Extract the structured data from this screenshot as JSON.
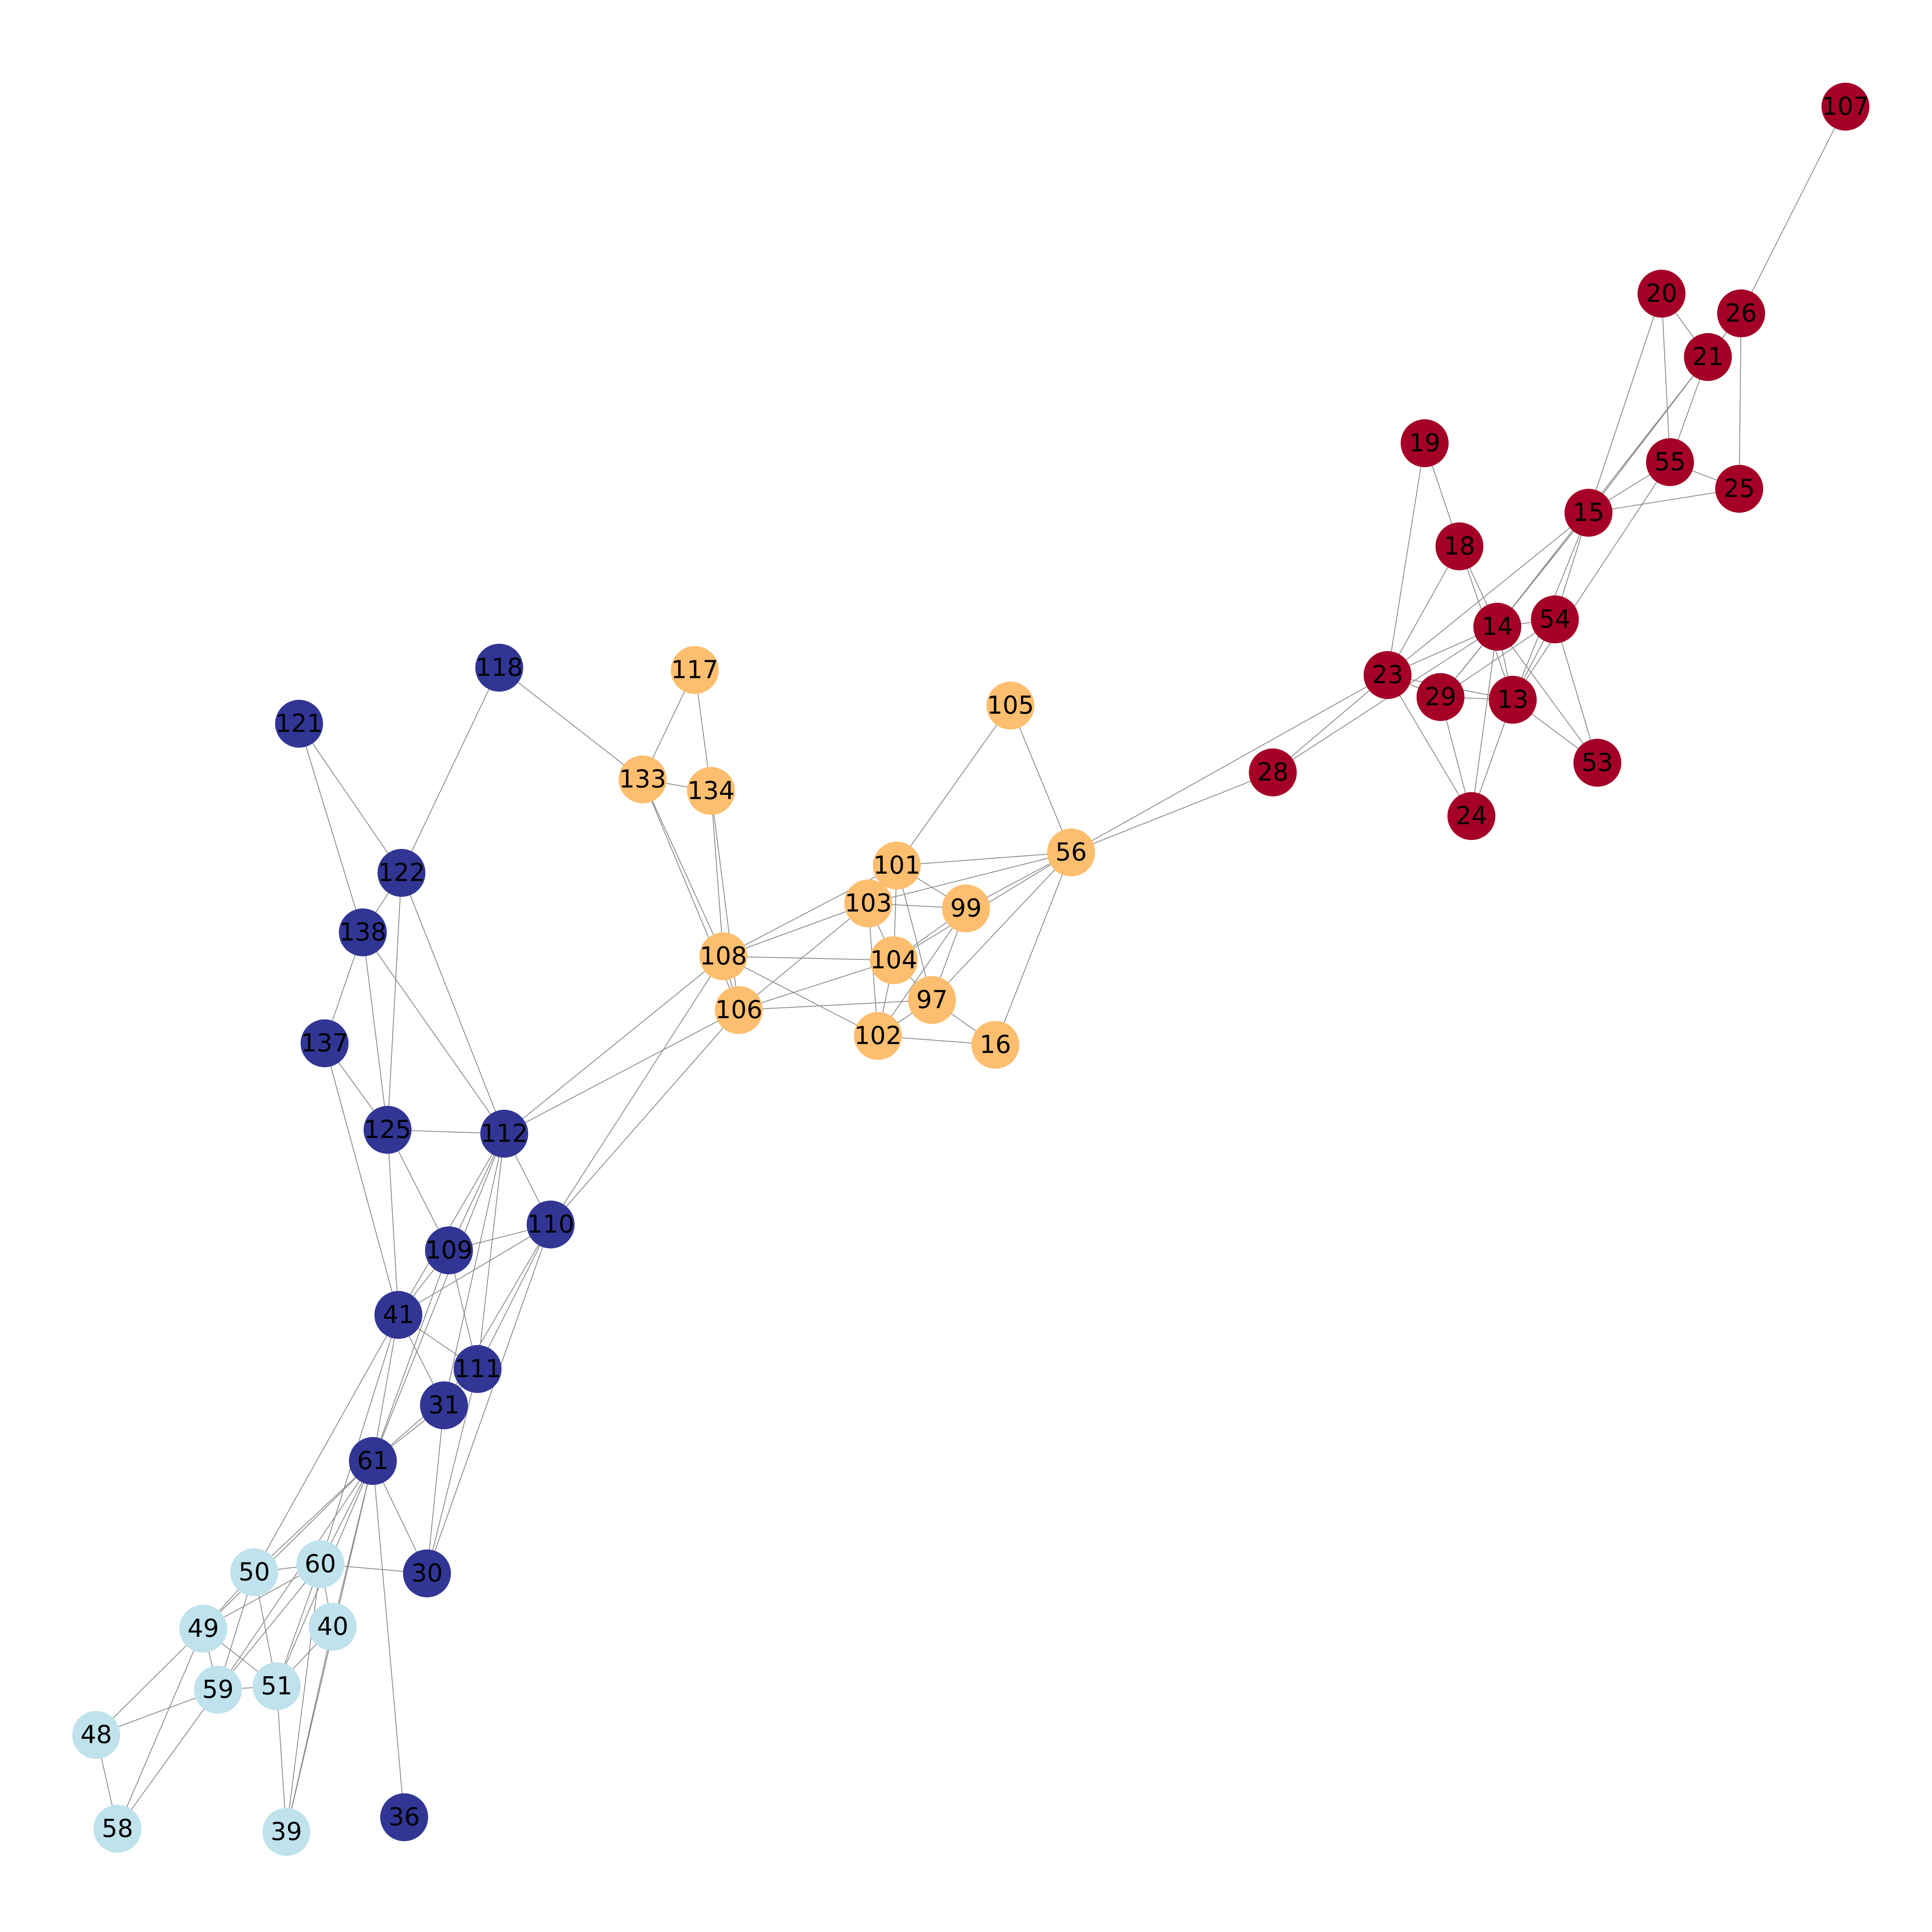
{
  "colors": {
    "red": "#a50026",
    "orange": "#fdbe6f",
    "darkblue": "#313695",
    "lightblue": "#bfe2ec",
    "edge": "#8c8c8c",
    "label": "#000000"
  },
  "nodes": [
    {
      "id": "107",
      "group": "red"
    },
    {
      "id": "20",
      "group": "red"
    },
    {
      "id": "26",
      "group": "red"
    },
    {
      "id": "21",
      "group": "red"
    },
    {
      "id": "55",
      "group": "red"
    },
    {
      "id": "25",
      "group": "red"
    },
    {
      "id": "19",
      "group": "red"
    },
    {
      "id": "15",
      "group": "red"
    },
    {
      "id": "18",
      "group": "red"
    },
    {
      "id": "14",
      "group": "red"
    },
    {
      "id": "54",
      "group": "red"
    },
    {
      "id": "23",
      "group": "red"
    },
    {
      "id": "29",
      "group": "red"
    },
    {
      "id": "13",
      "group": "red"
    },
    {
      "id": "53",
      "group": "red"
    },
    {
      "id": "28",
      "group": "red"
    },
    {
      "id": "24",
      "group": "red"
    },
    {
      "id": "105",
      "group": "orange"
    },
    {
      "id": "117",
      "group": "orange"
    },
    {
      "id": "133",
      "group": "orange"
    },
    {
      "id": "134",
      "group": "orange"
    },
    {
      "id": "56",
      "group": "orange"
    },
    {
      "id": "101",
      "group": "orange"
    },
    {
      "id": "103",
      "group": "orange"
    },
    {
      "id": "99",
      "group": "orange"
    },
    {
      "id": "108",
      "group": "orange"
    },
    {
      "id": "104",
      "group": "orange"
    },
    {
      "id": "97",
      "group": "orange"
    },
    {
      "id": "106",
      "group": "orange"
    },
    {
      "id": "102",
      "group": "orange"
    },
    {
      "id": "16",
      "group": "orange"
    },
    {
      "id": "118",
      "group": "darkblue"
    },
    {
      "id": "121",
      "group": "darkblue"
    },
    {
      "id": "122",
      "group": "darkblue"
    },
    {
      "id": "138",
      "group": "darkblue"
    },
    {
      "id": "137",
      "group": "darkblue"
    },
    {
      "id": "125",
      "group": "darkblue"
    },
    {
      "id": "112",
      "group": "darkblue"
    },
    {
      "id": "110",
      "group": "darkblue"
    },
    {
      "id": "109",
      "group": "darkblue"
    },
    {
      "id": "41",
      "group": "darkblue"
    },
    {
      "id": "111",
      "group": "darkblue"
    },
    {
      "id": "31",
      "group": "darkblue"
    },
    {
      "id": "61",
      "group": "darkblue"
    },
    {
      "id": "30",
      "group": "darkblue"
    },
    {
      "id": "36",
      "group": "darkblue"
    },
    {
      "id": "50",
      "group": "lightblue"
    },
    {
      "id": "60",
      "group": "lightblue"
    },
    {
      "id": "49",
      "group": "lightblue"
    },
    {
      "id": "40",
      "group": "lightblue"
    },
    {
      "id": "59",
      "group": "lightblue"
    },
    {
      "id": "51",
      "group": "lightblue"
    },
    {
      "id": "48",
      "group": "lightblue"
    },
    {
      "id": "58",
      "group": "lightblue"
    },
    {
      "id": "39",
      "group": "lightblue"
    }
  ],
  "edges": [
    [
      "107",
      "26"
    ],
    [
      "20",
      "21"
    ],
    [
      "20",
      "55"
    ],
    [
      "20",
      "15"
    ],
    [
      "26",
      "21"
    ],
    [
      "26",
      "25"
    ],
    [
      "26",
      "15"
    ],
    [
      "21",
      "15"
    ],
    [
      "21",
      "14"
    ],
    [
      "21",
      "55"
    ],
    [
      "55",
      "25"
    ],
    [
      "55",
      "15"
    ],
    [
      "55",
      "13"
    ],
    [
      "25",
      "15"
    ],
    [
      "19",
      "18"
    ],
    [
      "19",
      "23"
    ],
    [
      "15",
      "54"
    ],
    [
      "15",
      "23"
    ],
    [
      "15",
      "29"
    ],
    [
      "15",
      "13"
    ],
    [
      "15",
      "14"
    ],
    [
      "18",
      "14"
    ],
    [
      "18",
      "13"
    ],
    [
      "18",
      "23"
    ],
    [
      "14",
      "23"
    ],
    [
      "14",
      "29"
    ],
    [
      "14",
      "13"
    ],
    [
      "14",
      "24"
    ],
    [
      "14",
      "53"
    ],
    [
      "14",
      "54"
    ],
    [
      "14",
      "28"
    ],
    [
      "54",
      "53"
    ],
    [
      "54",
      "29"
    ],
    [
      "54",
      "13"
    ],
    [
      "23",
      "29"
    ],
    [
      "23",
      "13"
    ],
    [
      "23",
      "24"
    ],
    [
      "23",
      "28"
    ],
    [
      "23",
      "56"
    ],
    [
      "29",
      "13"
    ],
    [
      "29",
      "24"
    ],
    [
      "13",
      "53"
    ],
    [
      "13",
      "24"
    ],
    [
      "28",
      "56"
    ],
    [
      "105",
      "56"
    ],
    [
      "105",
      "101"
    ],
    [
      "117",
      "133"
    ],
    [
      "117",
      "134"
    ],
    [
      "133",
      "134"
    ],
    [
      "133",
      "108"
    ],
    [
      "133",
      "106"
    ],
    [
      "133",
      "118"
    ],
    [
      "134",
      "108"
    ],
    [
      "134",
      "106"
    ],
    [
      "56",
      "101"
    ],
    [
      "56",
      "103"
    ],
    [
      "56",
      "99"
    ],
    [
      "56",
      "104"
    ],
    [
      "56",
      "97"
    ],
    [
      "56",
      "16"
    ],
    [
      "101",
      "103"
    ],
    [
      "101",
      "99"
    ],
    [
      "101",
      "108"
    ],
    [
      "101",
      "104"
    ],
    [
      "101",
      "97"
    ],
    [
      "103",
      "99"
    ],
    [
      "103",
      "104"
    ],
    [
      "103",
      "102"
    ],
    [
      "103",
      "106"
    ],
    [
      "103",
      "108"
    ],
    [
      "99",
      "104"
    ],
    [
      "99",
      "97"
    ],
    [
      "99",
      "102"
    ],
    [
      "108",
      "104"
    ],
    [
      "108",
      "102"
    ],
    [
      "108",
      "106"
    ],
    [
      "108",
      "112"
    ],
    [
      "108",
      "110"
    ],
    [
      "104",
      "106"
    ],
    [
      "104",
      "102"
    ],
    [
      "104",
      "97"
    ],
    [
      "97",
      "106"
    ],
    [
      "97",
      "102"
    ],
    [
      "97",
      "16"
    ],
    [
      "106",
      "112"
    ],
    [
      "106",
      "110"
    ],
    [
      "102",
      "16"
    ],
    [
      "118",
      "122"
    ],
    [
      "121",
      "122"
    ],
    [
      "121",
      "138"
    ],
    [
      "122",
      "138"
    ],
    [
      "122",
      "125"
    ],
    [
      "122",
      "112"
    ],
    [
      "138",
      "137"
    ],
    [
      "138",
      "125"
    ],
    [
      "138",
      "112"
    ],
    [
      "137",
      "125"
    ],
    [
      "137",
      "41"
    ],
    [
      "125",
      "112"
    ],
    [
      "125",
      "109"
    ],
    [
      "125",
      "41"
    ],
    [
      "112",
      "110"
    ],
    [
      "112",
      "109"
    ],
    [
      "112",
      "41"
    ],
    [
      "112",
      "111"
    ],
    [
      "112",
      "31"
    ],
    [
      "112",
      "61"
    ],
    [
      "110",
      "109"
    ],
    [
      "110",
      "41"
    ],
    [
      "110",
      "111"
    ],
    [
      "110",
      "31"
    ],
    [
      "110",
      "30"
    ],
    [
      "109",
      "41"
    ],
    [
      "109",
      "111"
    ],
    [
      "109",
      "61"
    ],
    [
      "41",
      "111"
    ],
    [
      "41",
      "31"
    ],
    [
      "41",
      "61"
    ],
    [
      "41",
      "60"
    ],
    [
      "41",
      "50"
    ],
    [
      "111",
      "31"
    ],
    [
      "111",
      "61"
    ],
    [
      "111",
      "30"
    ],
    [
      "31",
      "61"
    ],
    [
      "31",
      "30"
    ],
    [
      "61",
      "30"
    ],
    [
      "61",
      "36"
    ],
    [
      "61",
      "50"
    ],
    [
      "61",
      "60"
    ],
    [
      "61",
      "49"
    ],
    [
      "61",
      "40"
    ],
    [
      "61",
      "59"
    ],
    [
      "61",
      "51"
    ],
    [
      "61",
      "39"
    ],
    [
      "50",
      "60"
    ],
    [
      "50",
      "49"
    ],
    [
      "50",
      "59"
    ],
    [
      "50",
      "51"
    ],
    [
      "60",
      "30"
    ],
    [
      "60",
      "49"
    ],
    [
      "60",
      "40"
    ],
    [
      "60",
      "59"
    ],
    [
      "60",
      "51"
    ],
    [
      "60",
      "39"
    ],
    [
      "49",
      "59"
    ],
    [
      "49",
      "51"
    ],
    [
      "49",
      "48"
    ],
    [
      "49",
      "58"
    ],
    [
      "40",
      "51"
    ],
    [
      "40",
      "39"
    ],
    [
      "59",
      "51"
    ],
    [
      "59",
      "48"
    ],
    [
      "59",
      "58"
    ],
    [
      "51",
      "39"
    ],
    [
      "48",
      "58"
    ]
  ]
}
